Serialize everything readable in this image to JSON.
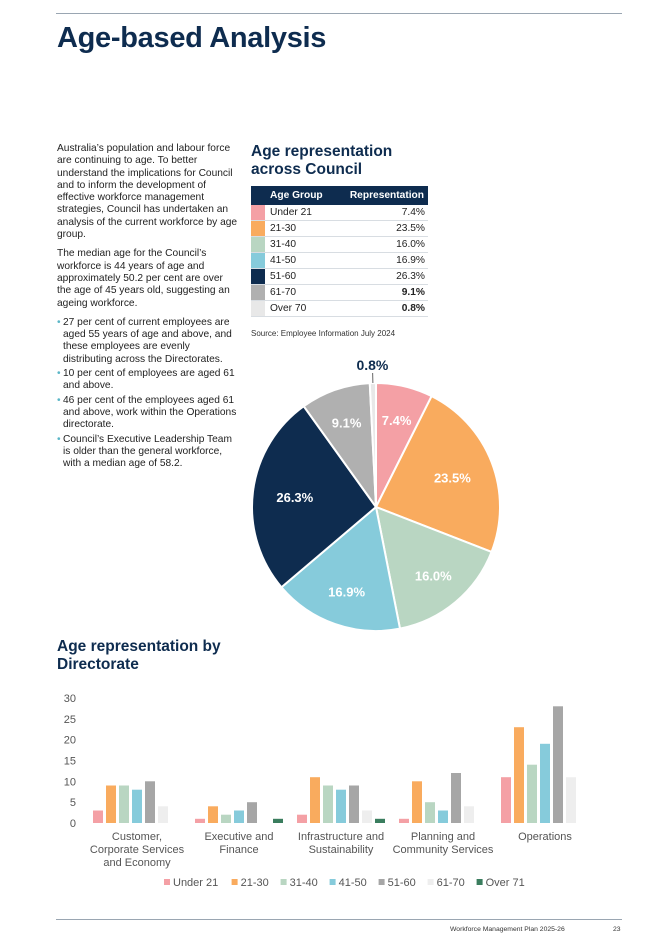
{
  "page_title": "Age-based Analysis",
  "intro": {
    "paragraphs": [
      "Australia’s population and labour force are continuing to age. To better understand the implications for Council and to inform the development of effective workforce management strategies, Council has undertaken an analysis of the current workforce by age group.",
      "The median age for the Council’s workforce is 44 years of age and approximately 50.2 per cent are over the age of 45 years old, suggesting an ageing workforce."
    ],
    "bullets": [
      "27 per cent of current employees are aged 55 years of age and above, and these employees are evenly distributing across the Directorates.",
      "10 per cent of employees are aged 61 and above.",
      "46 per cent of the employees aged 61 and above, work within the Operations directorate.",
      "Council’s Executive Leadership Team is older than the general workforce, with a median age of 58.2."
    ],
    "bullet_char": "•"
  },
  "council_section": {
    "heading_line1": "Age representation",
    "heading_line2": "across Council",
    "table_headers": [
      "Age Group",
      "Representation"
    ],
    "rows": [
      {
        "group": "Under 21",
        "value": "7.4%",
        "color": "#f4a0a5",
        "bold": false
      },
      {
        "group": "21-30",
        "value": "23.5%",
        "color": "#f9ab5e",
        "bold": false
      },
      {
        "group": "31-40",
        "value": "16.0%",
        "color": "#b9d6c2",
        "bold": false
      },
      {
        "group": "41-50",
        "value": "16.9%",
        "color": "#86cbdb",
        "bold": false
      },
      {
        "group": "51-60",
        "value": "26.3%",
        "color": "#0e2c4f",
        "bold": false
      },
      {
        "group": "61-70",
        "value": "9.1%",
        "color": "#b0b0b0",
        "bold": true
      },
      {
        "group": "Over 70",
        "value": "0.8%",
        "color": "#e8e8e8",
        "bold": true
      }
    ],
    "source": "Source: Employee Information July 2024"
  },
  "directorate_section": {
    "heading_line1": "Age representation by",
    "heading_line2": "Directorate"
  },
  "chart_data": [
    {
      "type": "pie",
      "slices": [
        {
          "label": "7.4%",
          "value": 7.4,
          "color": "#f4a0a5"
        },
        {
          "label": "23.5%",
          "value": 23.5,
          "color": "#f9ab5e"
        },
        {
          "label": "16.0%",
          "value": 16.0,
          "color": "#b9d6c2"
        },
        {
          "label": "16.9%",
          "value": 16.9,
          "color": "#86cbdb"
        },
        {
          "label": "26.3%",
          "value": 26.3,
          "color": "#0e2c4f"
        },
        {
          "label": "9.1%",
          "value": 9.1,
          "color": "#b0b0b0"
        },
        {
          "label": "0.8%",
          "value": 0.8,
          "color": "#e8e8e8"
        }
      ],
      "start_angle_deg": 0,
      "direction": "clockwise"
    },
    {
      "type": "bar",
      "categories": [
        [
          "Customer,",
          "Corporate Services",
          "and Economy"
        ],
        [
          "Executive and",
          "Finance"
        ],
        [
          "Infrastructure and",
          "Sustainability"
        ],
        [
          "Planning and",
          "Community Services"
        ],
        [
          "Operations"
        ]
      ],
      "series": [
        {
          "name": "Under 21",
          "color": "#f4a0a5",
          "values": [
            3,
            1,
            2,
            1,
            11
          ]
        },
        {
          "name": "21-30",
          "color": "#f9ab5e",
          "values": [
            9,
            4,
            11,
            10,
            23
          ]
        },
        {
          "name": "31-40",
          "color": "#b9d6c2",
          "values": [
            9,
            2,
            9,
            5,
            14
          ]
        },
        {
          "name": "41-50",
          "color": "#86cbdb",
          "values": [
            8,
            3,
            8,
            3,
            19
          ]
        },
        {
          "name": "51-60",
          "color": "#a6a6a6",
          "values": [
            10,
            5,
            9,
            12,
            28
          ]
        },
        {
          "name": "61-70",
          "color": "#eeeeee",
          "values": [
            4,
            0,
            3,
            4,
            11
          ]
        },
        {
          "name": "Over 71",
          "color": "#3a7d5e",
          "values": [
            0,
            1,
            1,
            0,
            0
          ]
        }
      ],
      "yticks": [
        0,
        5,
        10,
        15,
        20,
        25,
        30
      ],
      "ylim": [
        0,
        30
      ],
      "grid": false,
      "legend": "bottom"
    }
  ],
  "footer": {
    "doc_title": "Workforce Management Plan 2025-26",
    "page_number": "23"
  }
}
